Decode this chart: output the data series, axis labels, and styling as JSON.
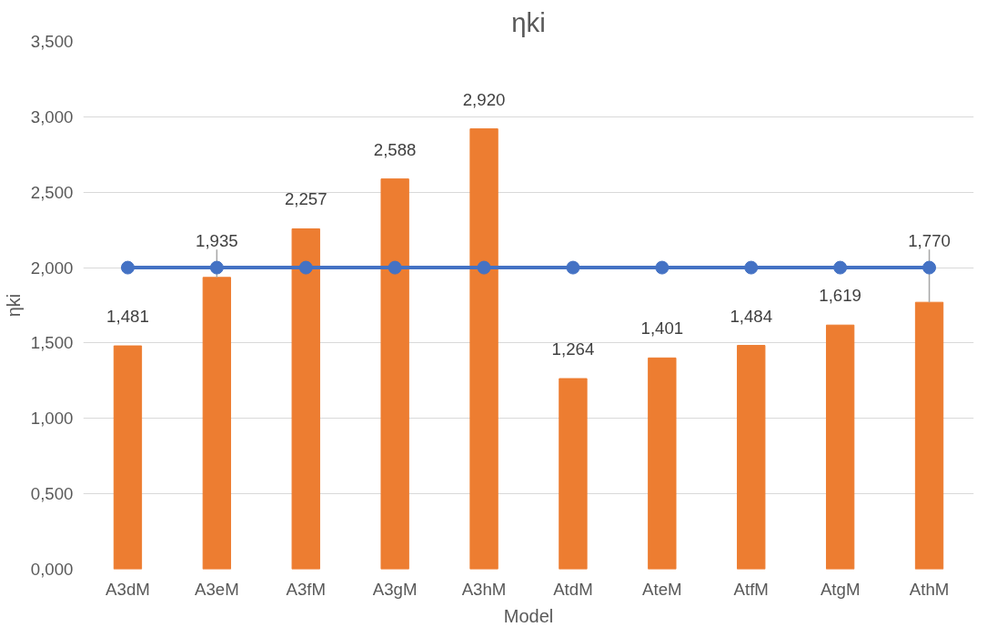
{
  "chart_data": {
    "type": "bar",
    "title": "ηki",
    "xlabel": "Model",
    "ylabel": "ηki",
    "categories": [
      "A3dM",
      "A3eM",
      "A3fM",
      "A3gM",
      "A3hM",
      "AtdM",
      "AteM",
      "AtfM",
      "AtgM",
      "AthM"
    ],
    "series": [
      {
        "color": "#ed7d31",
        "values": [
          1.481,
          1.935,
          2.257,
          2.588,
          2.92,
          1.264,
          1.401,
          1.484,
          1.619,
          1.77
        ],
        "value_labels": [
          "1,481",
          "1,935",
          "2,257",
          "2,588",
          "2,920",
          "1,264",
          "1,401",
          "1,484",
          "1,619",
          "1,770"
        ]
      },
      {
        "type": "line",
        "color": "#4472c4",
        "marker": "circle",
        "line_style": "solid",
        "values": [
          2,
          2,
          2,
          2,
          2,
          2,
          2,
          2,
          2,
          2
        ]
      }
    ],
    "ylim": [
      0,
      3.5
    ],
    "yticks": [
      {
        "value": 0,
        "label": "0,000"
      },
      {
        "value": 0.5,
        "label": "0,500"
      },
      {
        "value": 1,
        "label": "1,000"
      },
      {
        "value": 1.5,
        "label": "1,500"
      },
      {
        "value": 2,
        "label": "2,000"
      },
      {
        "value": 2.5,
        "label": "2,500"
      },
      {
        "value": 3,
        "label": "3,000"
      },
      {
        "value": 3.5,
        "label": "3,500"
      }
    ],
    "grid": "y"
  }
}
